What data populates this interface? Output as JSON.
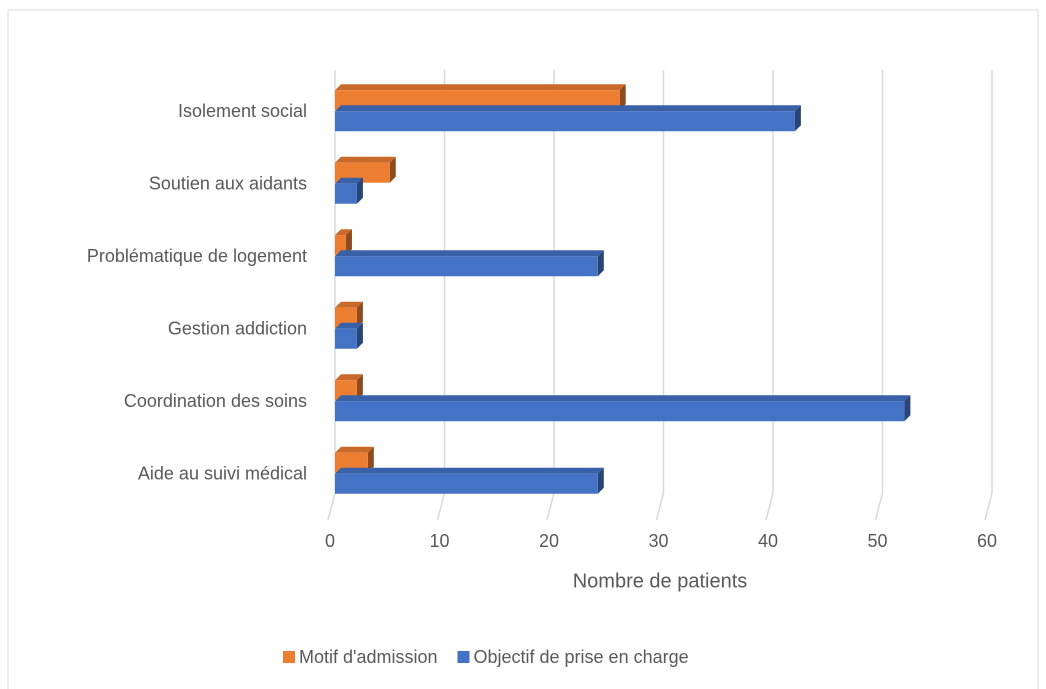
{
  "chart_data": {
    "type": "bar",
    "orientation": "horizontal",
    "categories": [
      "Aide au suivi médical",
      "Coordination des soins",
      "Gestion addiction",
      "Problématique de logement",
      "Soutien aux aidants",
      "Isolement social"
    ],
    "series": [
      {
        "name": "Motif d'admission",
        "color": "#ed7d31",
        "values": [
          3,
          2,
          2,
          1,
          5,
          26
        ]
      },
      {
        "name": "Objectif de prise en charge",
        "color": "#4472c4",
        "values": [
          24,
          52,
          2,
          24,
          2,
          42
        ]
      }
    ],
    "xlabel": "Nombre de patients",
    "xlim": [
      0,
      60
    ],
    "xticks": [
      0,
      10,
      20,
      30,
      40,
      50,
      60
    ],
    "grid": true,
    "legend": "bottom"
  }
}
